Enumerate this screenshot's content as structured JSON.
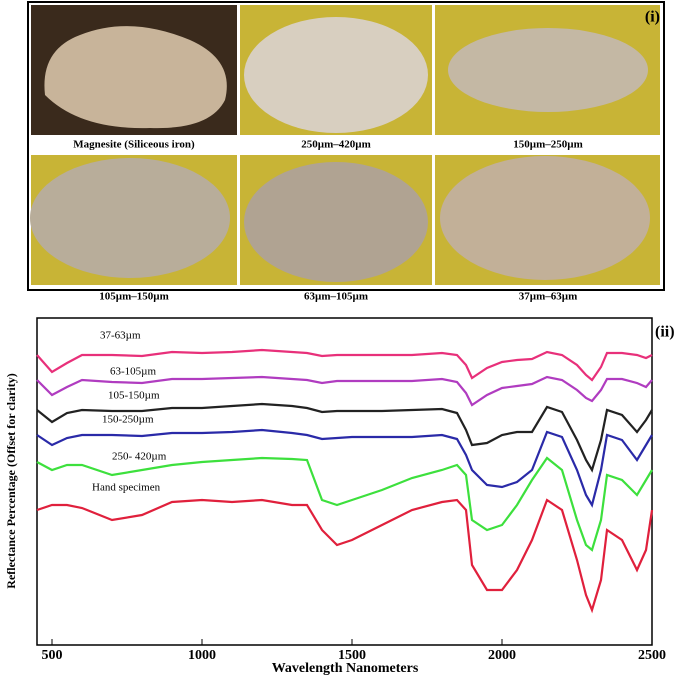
{
  "panel_i": {
    "label": "(i)",
    "captions": [
      "Magnesite (Siliceous iron)",
      "250µm–420µm",
      "150µm–250µm",
      "105µm–150µm",
      "63µm–105µm",
      "37µm–63µm"
    ]
  },
  "chart_data": {
    "type": "line",
    "panel_label": "(ii)",
    "xlabel": "Wavelength Nanometers",
    "ylabel": "Reflectance Percentage (Offset for clarity)",
    "xlim": [
      450,
      2500
    ],
    "xticks": [
      500,
      1000,
      1500,
      2000,
      2500
    ],
    "ylim": [
      0,
      327
    ],
    "x": [
      450,
      500,
      550,
      600,
      700,
      800,
      900,
      1000,
      1100,
      1200,
      1300,
      1350,
      1400,
      1450,
      1500,
      1600,
      1700,
      1800,
      1850,
      1880,
      1900,
      1950,
      2000,
      2050,
      2100,
      2150,
      2200,
      2250,
      2280,
      2300,
      2330,
      2350,
      2400,
      2450,
      2480,
      2500
    ],
    "series": [
      {
        "name": "37-63µm",
        "color": "#e8307a",
        "values": [
          290,
          273,
          282,
          290,
          290,
          289,
          293,
          292,
          293,
          295,
          293,
          292,
          289,
          290,
          290,
          290,
          290,
          292,
          290,
          280,
          267,
          277,
          283,
          285,
          286,
          293,
          290,
          280,
          270,
          265,
          278,
          292,
          292,
          290,
          287,
          290
        ]
      },
      {
        "name": "63-105µm",
        "color": "#b03cc0",
        "values": [
          265,
          250,
          258,
          265,
          263,
          262,
          266,
          266,
          267,
          268,
          266,
          265,
          262,
          264,
          264,
          264,
          264,
          266,
          263,
          252,
          240,
          250,
          257,
          259,
          261,
          268,
          265,
          255,
          247,
          244,
          255,
          266,
          266,
          262,
          258,
          265
        ]
      },
      {
        "name": "105-150µm",
        "color": "#222222",
        "values": [
          235,
          223,
          232,
          235,
          234,
          234,
          237,
          237,
          239,
          241,
          239,
          237,
          233,
          234,
          234,
          234,
          235,
          236,
          232,
          215,
          200,
          202,
          210,
          213,
          213,
          238,
          233,
          205,
          185,
          175,
          205,
          235,
          230,
          213,
          225,
          235
        ]
      },
      {
        "name": "150-250µm",
        "color": "#2a2aa8",
        "values": [
          210,
          200,
          207,
          210,
          210,
          209,
          212,
          212,
          213,
          215,
          212,
          210,
          206,
          207,
          208,
          208,
          208,
          210,
          206,
          190,
          175,
          160,
          158,
          163,
          175,
          213,
          208,
          175,
          150,
          140,
          175,
          210,
          205,
          185,
          200,
          210
        ]
      },
      {
        "name": "250- 420µm",
        "color": "#3de03d",
        "values": [
          183,
          175,
          180,
          180,
          170,
          175,
          180,
          183,
          185,
          187,
          186,
          185,
          145,
          140,
          145,
          155,
          167,
          175,
          180,
          170,
          125,
          115,
          120,
          140,
          165,
          187,
          175,
          125,
          100,
          95,
          125,
          170,
          165,
          150,
          165,
          175
        ]
      },
      {
        "name": "Hand specimen",
        "color": "#e0203c",
        "values": [
          135,
          140,
          140,
          137,
          125,
          130,
          143,
          145,
          143,
          145,
          140,
          140,
          115,
          100,
          105,
          120,
          135,
          143,
          145,
          135,
          80,
          55,
          55,
          75,
          105,
          145,
          135,
          85,
          50,
          35,
          65,
          115,
          105,
          75,
          95,
          135
        ]
      }
    ]
  }
}
